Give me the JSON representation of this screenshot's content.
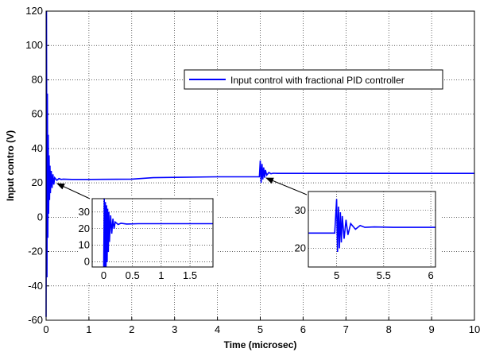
{
  "chart_data": {
    "type": "line",
    "title": "",
    "xlabel": "Time (microsec)",
    "ylabel": "Input contro (V)",
    "xlim": [
      0,
      10
    ],
    "ylim": [
      -60,
      120
    ],
    "x_ticks": [
      0,
      1,
      2,
      3,
      4,
      5,
      6,
      7,
      8,
      9,
      10
    ],
    "y_ticks": [
      -60,
      -40,
      -20,
      0,
      20,
      40,
      60,
      80,
      100,
      120
    ],
    "grid": true,
    "legend": {
      "position": "top-right",
      "entries": [
        "Input control with fractional PID controller"
      ]
    },
    "series": [
      {
        "name": "Input control with fractional PID controller",
        "color": "#0000ff",
        "x": [
          0.0,
          0.01,
          0.02,
          0.03,
          0.04,
          0.05,
          0.06,
          0.07,
          0.08,
          0.09,
          0.1,
          0.12,
          0.14,
          0.16,
          0.18,
          0.2,
          0.25,
          0.3,
          0.35,
          0.4,
          0.6,
          1.0,
          2.0,
          2.5,
          3.0,
          4.0,
          4.98,
          5.0,
          5.02,
          5.04,
          5.06,
          5.08,
          5.1,
          5.12,
          5.15,
          5.2,
          5.25,
          5.3,
          5.4,
          6.0,
          8.0,
          10.0
        ],
        "y": [
          -58,
          120,
          -35,
          72,
          -12,
          48,
          2,
          36,
          10,
          30,
          14,
          27,
          17,
          25,
          19,
          23,
          21.5,
          22.5,
          22,
          22.2,
          22,
          22,
          22.2,
          23,
          23.2,
          23.5,
          23.5,
          33,
          20,
          31,
          22,
          29,
          23,
          27.5,
          24.5,
          26,
          25.3,
          25.6,
          25.5,
          25.5,
          25.5,
          25.5
        ]
      }
    ],
    "insets": [
      {
        "xlim": [
          -0.2,
          1.9
        ],
        "ylim": [
          -3,
          38
        ],
        "x_ticks": [
          0,
          0.5,
          1,
          1.5
        ],
        "x_tick_labels": [
          "0",
          "0.5",
          "1",
          "1.5"
        ],
        "y_ticks": [
          0,
          10,
          20,
          30
        ],
        "y_tick_labels": [
          "0",
          "10",
          "20",
          "30"
        ],
        "grid": true,
        "annotation": "arrow points to region near t=0.2 us on main plot",
        "series": {
          "color": "#0000ff",
          "x": [
            0.0,
            0.01,
            0.02,
            0.03,
            0.04,
            0.05,
            0.06,
            0.07,
            0.08,
            0.09,
            0.1,
            0.12,
            0.14,
            0.16,
            0.18,
            0.2,
            0.25,
            0.3,
            0.4,
            0.6,
            1.0,
            1.5,
            1.9
          ],
          "y": [
            -3,
            38,
            -3,
            36,
            -3,
            34,
            0,
            32,
            6,
            30,
            12,
            28,
            17,
            26,
            20,
            24,
            22.5,
            23.2,
            22.8,
            23,
            23,
            23,
            23
          ]
        }
      },
      {
        "xlim": [
          4.7,
          6.05
        ],
        "ylim": [
          15,
          35
        ],
        "x_ticks": [
          5,
          5.5,
          6
        ],
        "x_tick_labels": [
          "5",
          "5.5",
          "6"
        ],
        "y_ticks": [
          20,
          30
        ],
        "y_tick_labels": [
          "20",
          "30"
        ],
        "grid": true,
        "annotation": "arrow points to region near t=5.1 us on main plot",
        "series": {
          "color": "#0000ff",
          "x": [
            4.7,
            4.98,
            5.0,
            5.01,
            5.02,
            5.03,
            5.04,
            5.05,
            5.06,
            5.08,
            5.1,
            5.12,
            5.15,
            5.2,
            5.25,
            5.3,
            5.4,
            5.6,
            6.05
          ],
          "y": [
            24,
            24,
            33,
            19,
            31,
            20,
            29.5,
            21.5,
            28.5,
            22.5,
            27.5,
            23.5,
            26.5,
            25,
            26,
            25.5,
            25.6,
            25.5,
            25.5
          ]
        }
      }
    ]
  }
}
